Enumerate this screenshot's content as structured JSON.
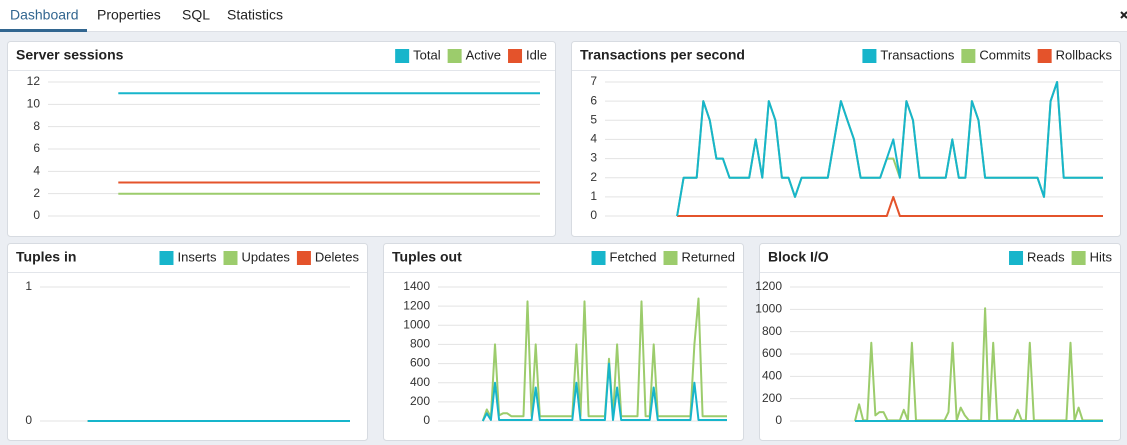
{
  "tabs": [
    "Dashboard",
    "Properties",
    "SQL",
    "Statistics"
  ],
  "chart_data": [
    {
      "type": "line",
      "title": "Server sessions",
      "ylim": [
        0,
        12
      ],
      "yticks": [
        0,
        2,
        4,
        6,
        8,
        10,
        12
      ],
      "grid": true,
      "series": [
        {
          "name": "Total",
          "color": "#17b5cb",
          "values": [
            null,
            null,
            null,
            null,
            null,
            null,
            null,
            11,
            11,
            11,
            11,
            11,
            11,
            11,
            11,
            11,
            11,
            11,
            11,
            11,
            11,
            11,
            11,
            11,
            11,
            11,
            11,
            11,
            11,
            11,
            11,
            11,
            11,
            11,
            11,
            11,
            11,
            11,
            11,
            11,
            11,
            11,
            11,
            11,
            11,
            11,
            11,
            11,
            11,
            11
          ]
        },
        {
          "name": "Active",
          "color": "#9ccc6c",
          "values": [
            null,
            null,
            null,
            null,
            null,
            null,
            null,
            2,
            2,
            2,
            2,
            2,
            2,
            2,
            2,
            2,
            2,
            2,
            2,
            2,
            2,
            2,
            2,
            2,
            2,
            2,
            2,
            2,
            2,
            2,
            2,
            2,
            2,
            2,
            2,
            2,
            2,
            2,
            2,
            2,
            2,
            2,
            2,
            2,
            2,
            2,
            2,
            2,
            2,
            2
          ]
        },
        {
          "name": "Idle",
          "color": "#e4532b",
          "values": [
            null,
            null,
            null,
            null,
            null,
            null,
            null,
            3,
            3,
            3,
            3,
            3,
            3,
            3,
            3,
            3,
            3,
            3,
            3,
            3,
            3,
            3,
            3,
            3,
            3,
            3,
            3,
            3,
            3,
            3,
            3,
            3,
            3,
            3,
            3,
            3,
            3,
            3,
            3,
            3,
            3,
            3,
            3,
            3,
            3,
            3,
            3,
            3,
            3,
            3
          ]
        }
      ]
    },
    {
      "type": "line",
      "title": "Transactions per second",
      "ylim": [
        0,
        7
      ],
      "yticks": [
        0,
        1,
        2,
        3,
        4,
        5,
        6,
        7
      ],
      "grid": true,
      "series": [
        {
          "name": "Transactions",
          "color": "#17b5cb",
          "values": [
            null,
            null,
            null,
            null,
            null,
            null,
            null,
            null,
            null,
            null,
            null,
            0,
            2,
            2,
            2,
            6,
            5,
            3,
            3,
            2,
            2,
            2,
            2,
            4,
            2,
            6,
            5,
            2,
            2,
            1,
            2,
            2,
            2,
            2,
            2,
            4,
            6,
            5,
            4,
            2,
            2,
            2,
            2,
            3,
            4,
            2,
            6,
            5,
            2,
            2,
            2,
            2,
            2,
            4,
            2,
            2,
            6,
            5,
            2,
            2,
            2,
            2,
            2,
            2,
            2,
            2,
            2,
            1,
            6,
            7,
            2,
            2,
            2,
            2,
            2,
            2,
            2
          ]
        },
        {
          "name": "Commits",
          "color": "#9ccc6c",
          "values": [
            null,
            null,
            null,
            null,
            null,
            null,
            null,
            null,
            null,
            null,
            null,
            0,
            2,
            2,
            2,
            6,
            5,
            3,
            3,
            2,
            2,
            2,
            2,
            4,
            2,
            6,
            5,
            2,
            2,
            1,
            2,
            2,
            2,
            2,
            2,
            4,
            6,
            5,
            4,
            2,
            2,
            2,
            2,
            3,
            3,
            2,
            6,
            5,
            2,
            2,
            2,
            2,
            2,
            4,
            2,
            2,
            6,
            5,
            2,
            2,
            2,
            2,
            2,
            2,
            2,
            2,
            2,
            1,
            6,
            7,
            2,
            2,
            2,
            2,
            2,
            2,
            2
          ]
        },
        {
          "name": "Rollbacks",
          "color": "#e4532b",
          "values": [
            null,
            null,
            null,
            null,
            null,
            null,
            null,
            null,
            null,
            null,
            null,
            0,
            0,
            0,
            0,
            0,
            0,
            0,
            0,
            0,
            0,
            0,
            0,
            0,
            0,
            0,
            0,
            0,
            0,
            0,
            0,
            0,
            0,
            0,
            0,
            0,
            0,
            0,
            0,
            0,
            0,
            0,
            0,
            0,
            1,
            0,
            0,
            0,
            0,
            0,
            0,
            0,
            0,
            0,
            0,
            0,
            0,
            0,
            0,
            0,
            0,
            0,
            0,
            0,
            0,
            0,
            0,
            0,
            0,
            0,
            0,
            0,
            0,
            0,
            0,
            0,
            0
          ]
        }
      ]
    },
    {
      "type": "line",
      "title": "Tuples in",
      "ylim": [
        0,
        1
      ],
      "yticks": [
        0,
        1
      ],
      "grid": true,
      "series": [
        {
          "name": "Inserts",
          "color": "#17b5cb",
          "values": [
            null,
            null,
            null,
            null,
            null,
            null,
            0,
            0,
            0,
            0,
            0,
            0,
            0,
            0,
            0,
            0,
            0,
            0,
            0,
            0,
            0,
            0,
            0,
            0,
            0,
            0,
            0,
            0,
            0,
            0,
            0,
            0,
            0,
            0,
            0,
            0,
            0,
            0,
            0,
            0
          ]
        },
        {
          "name": "Updates",
          "color": "#9ccc6c",
          "values": [
            null,
            null,
            null,
            null,
            null,
            null,
            0,
            0,
            0,
            0,
            0,
            0,
            0,
            0,
            0,
            0,
            0,
            0,
            0,
            0,
            0,
            0,
            0,
            0,
            0,
            0,
            0,
            0,
            0,
            0,
            0,
            0,
            0,
            0,
            0,
            0,
            0,
            0,
            0,
            0
          ]
        },
        {
          "name": "Deletes",
          "color": "#e4532b",
          "values": [
            null,
            null,
            null,
            null,
            null,
            null,
            0,
            0,
            0,
            0,
            0,
            0,
            0,
            0,
            0,
            0,
            0,
            0,
            0,
            0,
            0,
            0,
            0,
            0,
            0,
            0,
            0,
            0,
            0,
            0,
            0,
            0,
            0,
            0,
            0,
            0,
            0,
            0,
            0,
            0
          ]
        }
      ]
    },
    {
      "type": "line",
      "title": "Tuples out",
      "ylim": [
        0,
        1400
      ],
      "yticks": [
        0,
        200,
        400,
        600,
        800,
        1000,
        1200,
        1400
      ],
      "grid": true,
      "series": [
        {
          "name": "Fetched",
          "color": "#17b5cb",
          "values": [
            null,
            null,
            null,
            null,
            null,
            null,
            null,
            null,
            null,
            null,
            null,
            0,
            80,
            10,
            400,
            10,
            10,
            10,
            10,
            10,
            10,
            10,
            10,
            10,
            350,
            10,
            10,
            10,
            10,
            10,
            10,
            10,
            10,
            10,
            400,
            10,
            10,
            10,
            10,
            10,
            10,
            10,
            600,
            10,
            350,
            10,
            10,
            10,
            10,
            10,
            10,
            10,
            10,
            350,
            10,
            10,
            10,
            10,
            10,
            10,
            10,
            10,
            10,
            400,
            10,
            10,
            10,
            10,
            10,
            10,
            10,
            10
          ]
        },
        {
          "name": "Returned",
          "color": "#9ccc6c",
          "values": [
            null,
            null,
            null,
            null,
            null,
            null,
            null,
            null,
            null,
            null,
            null,
            0,
            120,
            40,
            800,
            60,
            80,
            80,
            50,
            50,
            50,
            50,
            1250,
            50,
            800,
            50,
            50,
            50,
            50,
            50,
            50,
            50,
            50,
            50,
            800,
            50,
            1250,
            50,
            50,
            50,
            50,
            50,
            650,
            50,
            800,
            50,
            50,
            50,
            50,
            50,
            1250,
            50,
            50,
            800,
            50,
            50,
            50,
            50,
            50,
            50,
            50,
            50,
            50,
            800,
            1280,
            50,
            50,
            50,
            50,
            50,
            50,
            50
          ]
        }
      ]
    },
    {
      "type": "line",
      "title": "Block I/O",
      "ylim": [
        0,
        1200
      ],
      "yticks": [
        0,
        200,
        400,
        600,
        800,
        1000,
        1200
      ],
      "grid": true,
      "series": [
        {
          "name": "Reads",
          "color": "#17b5cb",
          "values": [
            null,
            null,
            null,
            null,
            null,
            null,
            null,
            null,
            null,
            null,
            null,
            null,
            null,
            null,
            null,
            null,
            0,
            0,
            0,
            0,
            0,
            0,
            0,
            0,
            0,
            0,
            0,
            0,
            0,
            0,
            0,
            0,
            0,
            0,
            0,
            0,
            0,
            0,
            0,
            0,
            0,
            0,
            0,
            0,
            0,
            0,
            0,
            0,
            0,
            0,
            0,
            0,
            0,
            0,
            0,
            0,
            0,
            0,
            0,
            0,
            0,
            0,
            0,
            0,
            0,
            0,
            0,
            0,
            0,
            0,
            0,
            0,
            0,
            0,
            0,
            0,
            0,
            0
          ]
        },
        {
          "name": "Hits",
          "color": "#9ccc6c",
          "values": [
            null,
            null,
            null,
            null,
            null,
            null,
            null,
            null,
            null,
            null,
            null,
            null,
            null,
            null,
            null,
            null,
            0,
            150,
            5,
            5,
            700,
            50,
            80,
            80,
            5,
            5,
            5,
            5,
            100,
            5,
            700,
            5,
            5,
            5,
            5,
            5,
            5,
            5,
            5,
            80,
            700,
            5,
            120,
            50,
            5,
            5,
            5,
            5,
            1010,
            5,
            700,
            5,
            5,
            5,
            5,
            5,
            100,
            5,
            5,
            700,
            5,
            5,
            5,
            5,
            5,
            5,
            5,
            5,
            5,
            700,
            5,
            120,
            5,
            5,
            5,
            5,
            5,
            5
          ]
        }
      ]
    }
  ]
}
